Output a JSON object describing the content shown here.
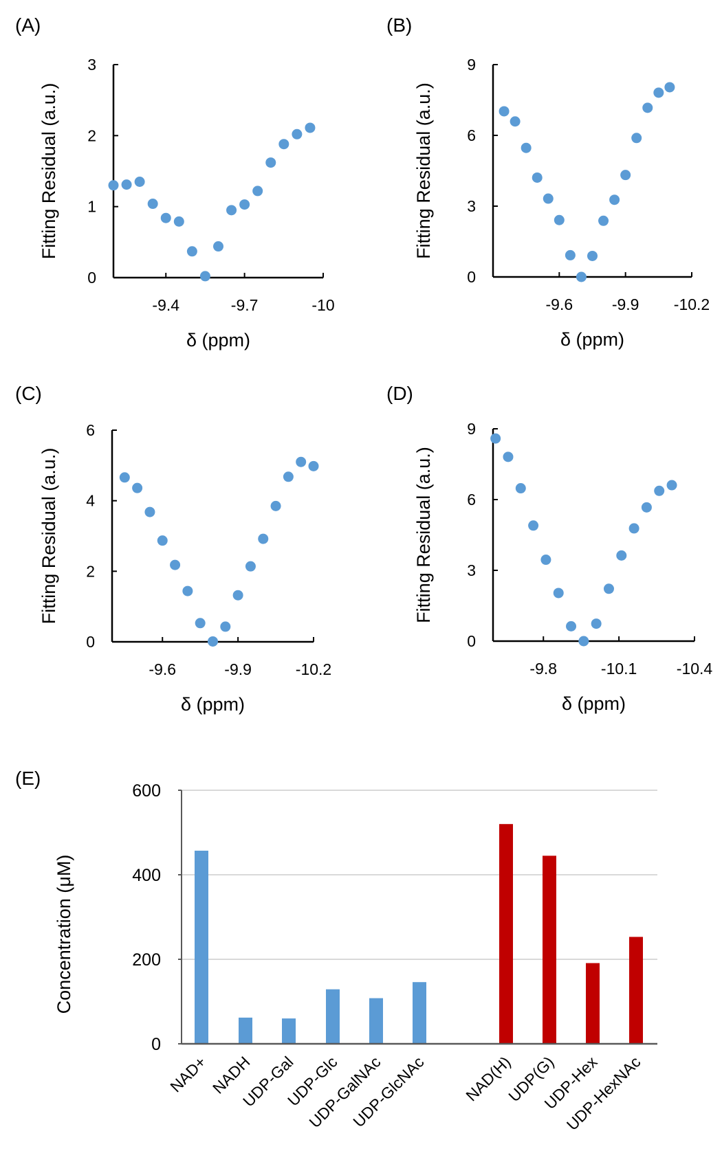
{
  "colors": {
    "blue": "#5B9BD5",
    "red": "#C00000"
  },
  "chart_data": [
    {
      "type": "scatter",
      "panel": "(A)",
      "xlabel": "δ  (ppm)",
      "ylabel": "Fitting Residual (a.u.)",
      "xlim": [
        -9.2,
        -10.0
      ],
      "ylim": [
        0,
        3
      ],
      "xticks": [
        -9.4,
        -9.7,
        -10.0
      ],
      "xtick_labels": [
        "-9.4",
        "-9.7",
        "-10"
      ],
      "yticks": [
        0,
        1,
        2,
        3
      ],
      "ytick_labels": [
        "0",
        "1",
        "2",
        "3"
      ],
      "x": [
        -9.2,
        -9.25,
        -9.3,
        -9.35,
        -9.4,
        -9.45,
        -9.5,
        -9.55,
        -9.6,
        -9.65,
        -9.7,
        -9.75,
        -9.8,
        -9.85,
        -9.9,
        -9.95
      ],
      "y": [
        1.3,
        1.31,
        1.35,
        1.04,
        0.84,
        0.79,
        0.37,
        0.02,
        0.44,
        0.95,
        1.03,
        1.22,
        1.62,
        1.88,
        2.02,
        2.11
      ]
    },
    {
      "type": "scatter",
      "panel": "(B)",
      "xlabel": "δ  (ppm)",
      "ylabel": "Fitting Residual (a.u.)",
      "xlim": [
        -9.3,
        -10.2
      ],
      "ylim": [
        0,
        9
      ],
      "xticks": [
        -9.6,
        -9.9,
        -10.2
      ],
      "xtick_labels": [
        "-9.6",
        "-9.9",
        "-10.2"
      ],
      "yticks": [
        0,
        3,
        6,
        9
      ],
      "ytick_labels": [
        "0",
        "3",
        "6",
        "9"
      ],
      "x": [
        -9.35,
        -9.4,
        -9.45,
        -9.5,
        -9.55,
        -9.6,
        -9.65,
        -9.7,
        -9.75,
        -9.8,
        -9.85,
        -9.9,
        -9.95,
        -10.0,
        -10.05,
        -10.1
      ],
      "y": [
        7.02,
        6.59,
        5.47,
        4.21,
        3.32,
        2.41,
        0.92,
        0.0,
        0.89,
        2.38,
        3.27,
        4.32,
        5.89,
        7.17,
        7.81,
        8.04
      ]
    },
    {
      "type": "scatter",
      "panel": "(C)",
      "xlabel": "δ  (ppm)",
      "ylabel": "Fitting Residual (a.u.)",
      "xlim": [
        -9.4,
        -10.2
      ],
      "ylim": [
        0,
        6
      ],
      "xticks": [
        -9.6,
        -9.9,
        -10.2
      ],
      "xtick_labels": [
        "-9.6",
        "-9.9",
        "-10.2"
      ],
      "yticks": [
        0,
        2,
        4,
        6
      ],
      "ytick_labels": [
        "0",
        "2",
        "4",
        "6"
      ],
      "x": [
        -9.45,
        -9.5,
        -9.55,
        -9.6,
        -9.65,
        -9.7,
        -9.75,
        -9.8,
        -9.85,
        -9.9,
        -9.95,
        -10.0,
        -10.05,
        -10.1,
        -10.15,
        -10.2
      ],
      "y": [
        4.66,
        4.36,
        3.68,
        2.87,
        2.18,
        1.44,
        0.53,
        0.01,
        0.43,
        1.32,
        2.14,
        2.92,
        3.85,
        4.68,
        5.1,
        4.98
      ]
    },
    {
      "type": "scatter",
      "panel": "(D)",
      "xlabel": "δ  (ppm)",
      "ylabel": "Fitting Residual (a.u.)",
      "xlim": [
        -9.6,
        -10.4
      ],
      "ylim": [
        0,
        9
      ],
      "xticks": [
        -9.8,
        -10.1,
        -10.4
      ],
      "xtick_labels": [
        "-9.8",
        "-10.1",
        "-10.4"
      ],
      "yticks": [
        0,
        3,
        6,
        9
      ],
      "ytick_labels": [
        "0",
        "3",
        "6",
        "9"
      ],
      "x": [
        -9.61,
        -9.66,
        -9.71,
        -9.76,
        -9.81,
        -9.86,
        -9.91,
        -9.96,
        -10.01,
        -10.06,
        -10.11,
        -10.16,
        -10.21,
        -10.26,
        -10.31
      ],
      "y": [
        8.59,
        7.81,
        6.48,
        4.9,
        3.45,
        2.04,
        0.63,
        0.0,
        0.74,
        2.22,
        3.63,
        4.78,
        5.67,
        6.37,
        6.61
      ]
    },
    {
      "type": "bar",
      "panel": "(E)",
      "xlabel": "",
      "ylabel": "Concentration (μM)",
      "ylim": [
        0,
        600
      ],
      "yticks": [
        0,
        200,
        400,
        600
      ],
      "ytick_labels": [
        "0",
        "200",
        "400",
        "600"
      ],
      "grid": true,
      "categories": [
        "NAD+",
        "NADH",
        "UDP-Gal",
        "UDP-Glc",
        "UDP-GalNAc",
        "UDP-GlcNAc",
        "NAD(H)",
        "UDP(G)",
        "UDP-Hex",
        "UDP-HexNAc"
      ],
      "values": [
        457,
        62,
        60,
        129,
        108,
        146,
        520,
        445,
        191,
        253
      ],
      "bar_colors": [
        "blue",
        "blue",
        "blue",
        "blue",
        "blue",
        "blue",
        "red",
        "red",
        "red",
        "red"
      ]
    }
  ]
}
